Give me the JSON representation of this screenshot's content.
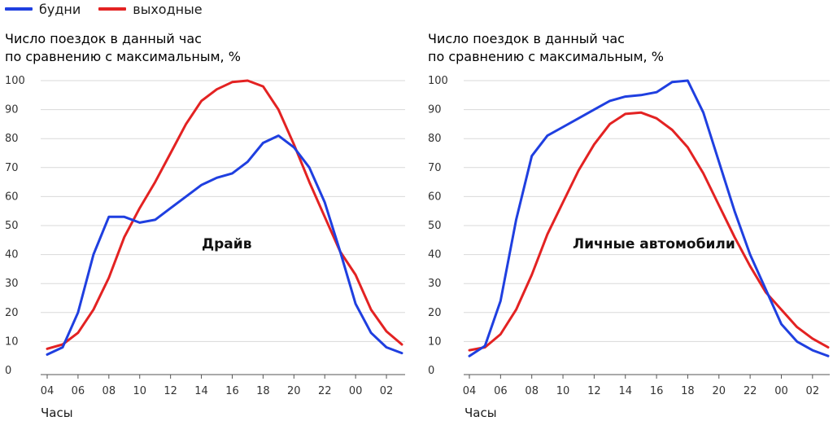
{
  "legend": {
    "items": [
      {
        "label": "будни",
        "color": "#1f3fe0"
      },
      {
        "label": "выходные",
        "color": "#e32222"
      }
    ]
  },
  "chart_data": [
    {
      "type": "line",
      "title": "",
      "ylabel_line1": "Число поездок в данный час",
      "ylabel_line2": "по сравнению с максимальным, %",
      "xlabel": "Часы",
      "annotation": "Драйв",
      "ylim": [
        0,
        100
      ],
      "yticks": [
        0,
        10,
        20,
        30,
        40,
        50,
        60,
        70,
        80,
        90,
        100
      ],
      "x": [
        4,
        5,
        6,
        7,
        8,
        9,
        10,
        11,
        12,
        13,
        14,
        15,
        16,
        17,
        18,
        19,
        20,
        21,
        22,
        23,
        24,
        25,
        26,
        27
      ],
      "xticks": [
        "04",
        "06",
        "08",
        "10",
        "12",
        "14",
        "16",
        "18",
        "20",
        "22",
        "00",
        "02"
      ],
      "series": [
        {
          "name": "будни",
          "color": "#1f3fe0",
          "values": [
            5.5,
            8,
            20,
            40,
            53,
            53,
            51,
            52,
            56,
            60,
            64,
            66.5,
            68,
            72,
            78.5,
            81,
            77,
            70,
            58,
            41,
            23,
            13,
            8,
            6
          ]
        },
        {
          "name": "выходные",
          "color": "#e32222",
          "values": [
            7.5,
            9,
            13,
            21,
            32,
            46,
            56,
            65,
            75,
            85,
            93,
            97,
            99.5,
            100,
            98,
            90,
            78,
            65,
            53,
            41,
            33,
            21,
            13.5,
            9
          ]
        }
      ]
    },
    {
      "type": "line",
      "title": "",
      "ylabel_line1": "Число поездок в данный час",
      "ylabel_line2": "по сравнению с максимальным, %",
      "xlabel": "Часы",
      "annotation": "Личные автомобили",
      "ylim": [
        0,
        100
      ],
      "yticks": [
        0,
        10,
        20,
        30,
        40,
        50,
        60,
        70,
        80,
        90,
        100
      ],
      "x": [
        4,
        5,
        6,
        7,
        8,
        9,
        10,
        11,
        12,
        13,
        14,
        15,
        16,
        17,
        18,
        19,
        20,
        21,
        22,
        23,
        24,
        25,
        26,
        27
      ],
      "xticks": [
        "04",
        "06",
        "08",
        "10",
        "12",
        "14",
        "16",
        "18",
        "20",
        "22",
        "00",
        "02"
      ],
      "series": [
        {
          "name": "будни",
          "color": "#1f3fe0",
          "values": [
            5,
            8.5,
            24,
            52,
            74,
            81,
            84,
            87,
            90,
            93,
            94.5,
            95,
            96,
            99.5,
            100,
            89,
            72,
            55,
            40,
            28,
            16,
            10,
            7,
            5
          ]
        },
        {
          "name": "выходные",
          "color": "#e32222",
          "values": [
            7,
            8,
            12.5,
            21,
            33,
            47,
            58,
            69,
            78,
            85,
            88.5,
            89,
            87,
            83,
            77,
            68,
            57,
            46,
            36,
            27,
            21,
            15,
            11,
            8
          ]
        }
      ]
    }
  ]
}
